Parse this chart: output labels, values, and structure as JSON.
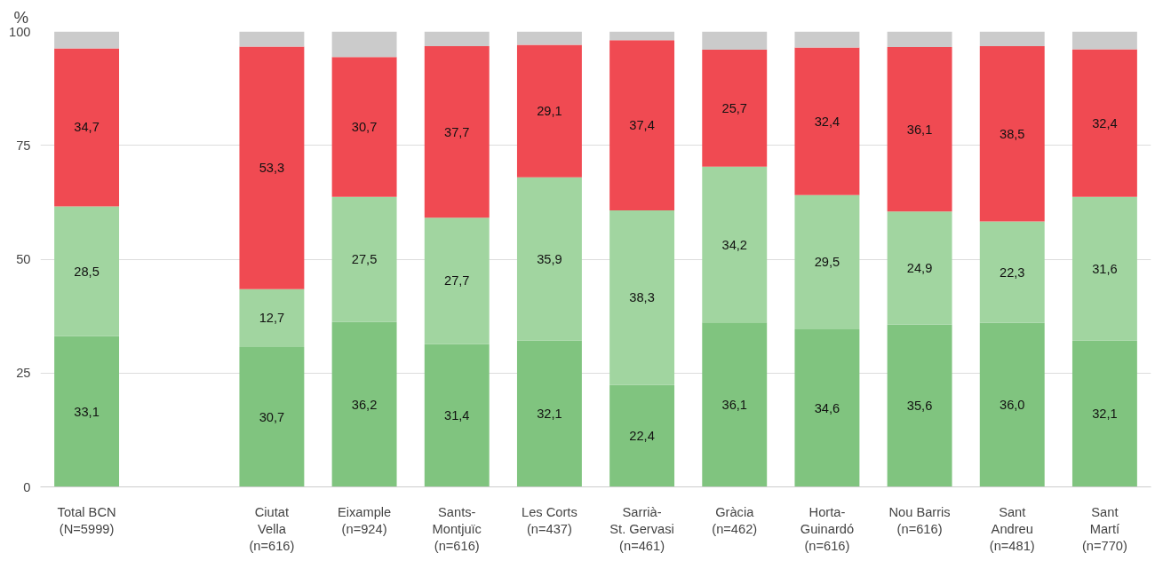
{
  "chart_data": {
    "type": "bar",
    "stacked": true,
    "ylabel": "%",
    "categories": [
      "Total BCN\n(N=5999)",
      null,
      "Ciutat\nVella\n(n=616)",
      "Eixample\n(n=924)",
      "Sants-\nMontjuïc\n(n=616)",
      "Les Corts\n(n=437)",
      "Sarrià-\nSt. Gervasi\n(n=461)",
      "Gràcia\n(n=462)",
      "Horta-\nGuinardó\n(n=616)",
      "Nou Barris\n(n=616)",
      "Sant\nAndreu\n(n=481)",
      "Sant\nMartí\n(n=770)"
    ],
    "series": [
      {
        "color": "#80c47f",
        "values": [
          33.1,
          null,
          30.7,
          36.2,
          31.4,
          32.1,
          22.4,
          36.1,
          34.6,
          35.6,
          36.0,
          32.1
        ],
        "value_labels": [
          "33,1",
          null,
          "30,7",
          "36,2",
          "31,4",
          "32,1",
          "22,4",
          "36,1",
          "34,6",
          "35,6",
          "36,0",
          "32,1"
        ]
      },
      {
        "color": "#a1d5a0",
        "values": [
          28.5,
          null,
          12.7,
          27.5,
          27.7,
          35.9,
          38.3,
          34.2,
          29.5,
          24.9,
          22.3,
          31.6
        ],
        "value_labels": [
          "28,5",
          null,
          "12,7",
          "27,5",
          "27,7",
          "35,9",
          "38,3",
          "34,2",
          "29,5",
          "24,9",
          "22,3",
          "31,6"
        ]
      },
      {
        "color": "#f04a52",
        "values": [
          34.7,
          null,
          53.3,
          30.7,
          37.7,
          29.1,
          37.4,
          25.7,
          32.4,
          36.1,
          38.5,
          32.4
        ],
        "value_labels": [
          "34,7",
          null,
          "53,3",
          "30,7",
          "37,7",
          "29,1",
          "37,4",
          "25,7",
          "32,4",
          "36,1",
          "38,5",
          "32,4"
        ]
      },
      {
        "color": "#cbcbcb",
        "values": [
          3.7,
          null,
          3.3,
          5.6,
          3.2,
          2.9,
          1.9,
          4.0,
          3.5,
          3.4,
          3.2,
          3.9
        ]
      }
    ],
    "ylim": [
      0,
      100
    ],
    "yticks": [
      0,
      25,
      50,
      75,
      100
    ],
    "grid": "y"
  }
}
